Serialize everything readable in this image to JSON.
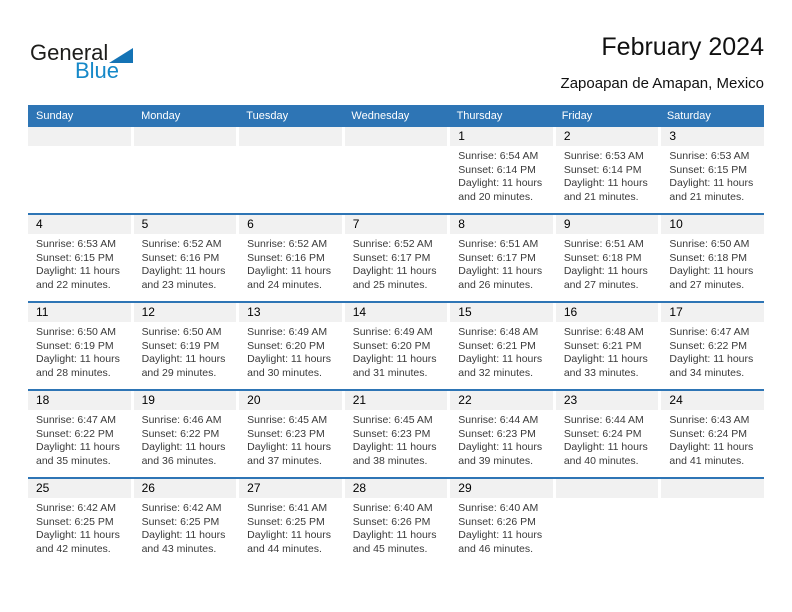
{
  "logo": {
    "part1": "General",
    "part2": "Blue"
  },
  "header": {
    "title": "February 2024",
    "subtitle": "Zapoapan de Amapan, Mexico"
  },
  "weekday_headers": [
    "Sunday",
    "Monday",
    "Tuesday",
    "Wednesday",
    "Thursday",
    "Friday",
    "Saturday"
  ],
  "colors": {
    "header_blue": "#2E75B5",
    "row_line_blue": "#2E75B5",
    "band_gray": "#F1F1F1",
    "logo_blue": "#1588c8",
    "logo_triangle_blue": "#1473b5"
  },
  "weeks": [
    [
      null,
      null,
      null,
      null,
      {
        "day": "1",
        "lines": [
          "Sunrise: 6:54 AM",
          "Sunset: 6:14 PM",
          "Daylight: 11 hours",
          "and 20 minutes."
        ]
      },
      {
        "day": "2",
        "lines": [
          "Sunrise: 6:53 AM",
          "Sunset: 6:14 PM",
          "Daylight: 11 hours",
          "and 21 minutes."
        ]
      },
      {
        "day": "3",
        "lines": [
          "Sunrise: 6:53 AM",
          "Sunset: 6:15 PM",
          "Daylight: 11 hours",
          "and 21 minutes."
        ]
      }
    ],
    [
      {
        "day": "4",
        "lines": [
          "Sunrise: 6:53 AM",
          "Sunset: 6:15 PM",
          "Daylight: 11 hours",
          "and 22 minutes."
        ]
      },
      {
        "day": "5",
        "lines": [
          "Sunrise: 6:52 AM",
          "Sunset: 6:16 PM",
          "Daylight: 11 hours",
          "and 23 minutes."
        ]
      },
      {
        "day": "6",
        "lines": [
          "Sunrise: 6:52 AM",
          "Sunset: 6:16 PM",
          "Daylight: 11 hours",
          "and 24 minutes."
        ]
      },
      {
        "day": "7",
        "lines": [
          "Sunrise: 6:52 AM",
          "Sunset: 6:17 PM",
          "Daylight: 11 hours",
          "and 25 minutes."
        ]
      },
      {
        "day": "8",
        "lines": [
          "Sunrise: 6:51 AM",
          "Sunset: 6:17 PM",
          "Daylight: 11 hours",
          "and 26 minutes."
        ]
      },
      {
        "day": "9",
        "lines": [
          "Sunrise: 6:51 AM",
          "Sunset: 6:18 PM",
          "Daylight: 11 hours",
          "and 27 minutes."
        ]
      },
      {
        "day": "10",
        "lines": [
          "Sunrise: 6:50 AM",
          "Sunset: 6:18 PM",
          "Daylight: 11 hours",
          "and 27 minutes."
        ]
      }
    ],
    [
      {
        "day": "11",
        "lines": [
          "Sunrise: 6:50 AM",
          "Sunset: 6:19 PM",
          "Daylight: 11 hours",
          "and 28 minutes."
        ]
      },
      {
        "day": "12",
        "lines": [
          "Sunrise: 6:50 AM",
          "Sunset: 6:19 PM",
          "Daylight: 11 hours",
          "and 29 minutes."
        ]
      },
      {
        "day": "13",
        "lines": [
          "Sunrise: 6:49 AM",
          "Sunset: 6:20 PM",
          "Daylight: 11 hours",
          "and 30 minutes."
        ]
      },
      {
        "day": "14",
        "lines": [
          "Sunrise: 6:49 AM",
          "Sunset: 6:20 PM",
          "Daylight: 11 hours",
          "and 31 minutes."
        ]
      },
      {
        "day": "15",
        "lines": [
          "Sunrise: 6:48 AM",
          "Sunset: 6:21 PM",
          "Daylight: 11 hours",
          "and 32 minutes."
        ]
      },
      {
        "day": "16",
        "lines": [
          "Sunrise: 6:48 AM",
          "Sunset: 6:21 PM",
          "Daylight: 11 hours",
          "and 33 minutes."
        ]
      },
      {
        "day": "17",
        "lines": [
          "Sunrise: 6:47 AM",
          "Sunset: 6:22 PM",
          "Daylight: 11 hours",
          "and 34 minutes."
        ]
      }
    ],
    [
      {
        "day": "18",
        "lines": [
          "Sunrise: 6:47 AM",
          "Sunset: 6:22 PM",
          "Daylight: 11 hours",
          "and 35 minutes."
        ]
      },
      {
        "day": "19",
        "lines": [
          "Sunrise: 6:46 AM",
          "Sunset: 6:22 PM",
          "Daylight: 11 hours",
          "and 36 minutes."
        ]
      },
      {
        "day": "20",
        "lines": [
          "Sunrise: 6:45 AM",
          "Sunset: 6:23 PM",
          "Daylight: 11 hours",
          "and 37 minutes."
        ]
      },
      {
        "day": "21",
        "lines": [
          "Sunrise: 6:45 AM",
          "Sunset: 6:23 PM",
          "Daylight: 11 hours",
          "and 38 minutes."
        ]
      },
      {
        "day": "22",
        "lines": [
          "Sunrise: 6:44 AM",
          "Sunset: 6:23 PM",
          "Daylight: 11 hours",
          "and 39 minutes."
        ]
      },
      {
        "day": "23",
        "lines": [
          "Sunrise: 6:44 AM",
          "Sunset: 6:24 PM",
          "Daylight: 11 hours",
          "and 40 minutes."
        ]
      },
      {
        "day": "24",
        "lines": [
          "Sunrise: 6:43 AM",
          "Sunset: 6:24 PM",
          "Daylight: 11 hours",
          "and 41 minutes."
        ]
      }
    ],
    [
      {
        "day": "25",
        "lines": [
          "Sunrise: 6:42 AM",
          "Sunset: 6:25 PM",
          "Daylight: 11 hours",
          "and 42 minutes."
        ]
      },
      {
        "day": "26",
        "lines": [
          "Sunrise: 6:42 AM",
          "Sunset: 6:25 PM",
          "Daylight: 11 hours",
          "and 43 minutes."
        ]
      },
      {
        "day": "27",
        "lines": [
          "Sunrise: 6:41 AM",
          "Sunset: 6:25 PM",
          "Daylight: 11 hours",
          "and 44 minutes."
        ]
      },
      {
        "day": "28",
        "lines": [
          "Sunrise: 6:40 AM",
          "Sunset: 6:26 PM",
          "Daylight: 11 hours",
          "and 45 minutes."
        ]
      },
      {
        "day": "29",
        "lines": [
          "Sunrise: 6:40 AM",
          "Sunset: 6:26 PM",
          "Daylight: 11 hours",
          "and 46 minutes."
        ]
      },
      null,
      null
    ]
  ]
}
